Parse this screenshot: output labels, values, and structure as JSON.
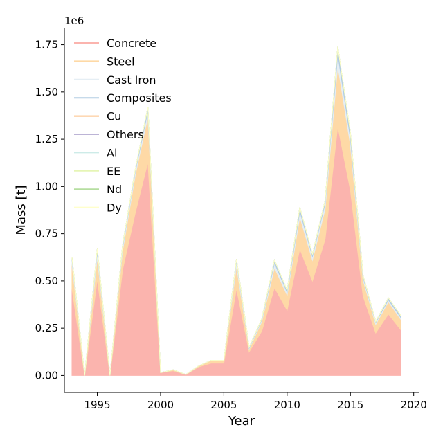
{
  "chart_data": {
    "type": "area",
    "stacked": true,
    "title": "",
    "xlabel": "Year",
    "ylabel": "Mass [t]",
    "y_offset_label": "1e6",
    "xlim": [
      1992.4,
      2020.4
    ],
    "ylim": [
      -0.09,
      1.84
    ],
    "xticks": [
      1995,
      2000,
      2005,
      2010,
      2015,
      2020
    ],
    "yticks": [
      0.0,
      0.25,
      0.5,
      0.75,
      1.0,
      1.25,
      1.5,
      1.75
    ],
    "ytick_labels": [
      "0.00",
      "0.25",
      "0.50",
      "0.75",
      "1.00",
      "1.25",
      "1.50",
      "1.75"
    ],
    "legend_position": "top-left",
    "grid": false,
    "x": [
      1993,
      1994,
      1995,
      1996,
      1997,
      1998,
      1999,
      2000,
      2001,
      2002,
      2003,
      2004,
      2005,
      2006,
      2007,
      2008,
      2009,
      2010,
      2011,
      2012,
      2013,
      2014,
      2015,
      2016,
      2017,
      2018,
      2019
    ],
    "series": [
      {
        "name": "Concrete",
        "color": "#fbb4ae",
        "values": [
          0.46,
          0.0,
          0.51,
          0.0,
          0.56,
          0.86,
          1.13,
          0.015,
          0.025,
          0.005,
          0.045,
          0.065,
          0.065,
          0.46,
          0.125,
          0.235,
          0.465,
          0.345,
          0.67,
          0.5,
          0.72,
          1.32,
          0.98,
          0.42,
          0.225,
          0.325,
          0.24
        ]
      },
      {
        "name": "Steel",
        "color": "#fed9a6",
        "values": [
          0.13,
          0.0,
          0.115,
          0.0,
          0.1,
          0.2,
          0.24,
          0.0,
          0.005,
          0.0,
          0.005,
          0.015,
          0.015,
          0.12,
          0.015,
          0.05,
          0.105,
          0.08,
          0.17,
          0.11,
          0.16,
          0.32,
          0.24,
          0.085,
          0.045,
          0.065,
          0.055
        ]
      },
      {
        "name": "Cast Iron",
        "color": "#e5eef4",
        "values": [
          0.025,
          0.0,
          0.03,
          0.0,
          0.02,
          0.02,
          0.03,
          0.0,
          0.0,
          0.0,
          0.0,
          0.0,
          0.0,
          0.025,
          0.005,
          0.01,
          0.025,
          0.015,
          0.03,
          0.02,
          0.03,
          0.06,
          0.035,
          0.015,
          0.01,
          0.01,
          0.01
        ]
      },
      {
        "name": "Composites",
        "color": "#b3cde3",
        "values": [
          0.01,
          0.0,
          0.015,
          0.0,
          0.01,
          0.01,
          0.02,
          0.0,
          0.0,
          0.0,
          0.0,
          0.0,
          0.0,
          0.01,
          0.005,
          0.005,
          0.015,
          0.01,
          0.02,
          0.01,
          0.015,
          0.04,
          0.03,
          0.01,
          0.005,
          0.01,
          0.01
        ]
      },
      {
        "name": "Cu",
        "color": "#fdc086",
        "values": [
          0.0,
          0.0,
          0.0,
          0.0,
          0.0,
          0.0,
          0.0,
          0.0,
          0.0,
          0.0,
          0.0,
          0.0,
          0.0,
          0.0,
          0.0,
          0.0,
          0.0,
          0.0,
          0.0,
          0.0,
          0.0,
          0.0,
          0.0,
          0.0,
          0.0,
          0.0,
          0.0
        ]
      },
      {
        "name": "Others",
        "color": "#bcb4d6",
        "values": [
          0.0,
          0.0,
          0.0,
          0.0,
          0.0,
          0.0,
          0.0,
          0.0,
          0.0,
          0.0,
          0.0,
          0.0,
          0.0,
          0.0,
          0.0,
          0.0,
          0.0,
          0.0,
          0.0,
          0.0,
          0.0,
          0.0,
          0.0,
          0.0,
          0.0,
          0.0,
          0.0
        ]
      },
      {
        "name": "Al",
        "color": "#cdebe8",
        "values": [
          0.0,
          0.0,
          0.0,
          0.0,
          0.0,
          0.0,
          0.0,
          0.0,
          0.0,
          0.0,
          0.0,
          0.0,
          0.0,
          0.0,
          0.0,
          0.0,
          0.0,
          0.0,
          0.0,
          0.0,
          0.0,
          0.0,
          0.0,
          0.0,
          0.0,
          0.0,
          0.0
        ]
      },
      {
        "name": "EE",
        "color": "#e6f5b6",
        "values": [
          0.0,
          0.0,
          0.0,
          0.0,
          0.0,
          0.0,
          0.0,
          0.0,
          0.0,
          0.0,
          0.0,
          0.0,
          0.0,
          0.0,
          0.0,
          0.0,
          0.0,
          0.0,
          0.0,
          0.0,
          0.0,
          0.0,
          0.0,
          0.0,
          0.0,
          0.0,
          0.0
        ]
      },
      {
        "name": "Nd",
        "color": "#b5dea0",
        "values": [
          0.0,
          0.0,
          0.0,
          0.0,
          0.0,
          0.0,
          0.0,
          0.0,
          0.0,
          0.0,
          0.0,
          0.0,
          0.0,
          0.0,
          0.0,
          0.0,
          0.0,
          0.0,
          0.0,
          0.0,
          0.0,
          0.0,
          0.0,
          0.0,
          0.0,
          0.0,
          0.0
        ]
      },
      {
        "name": "Dy",
        "color": "#ffffcc",
        "values": [
          0.0,
          0.0,
          0.0,
          0.0,
          0.0,
          0.0,
          0.0,
          0.0,
          0.0,
          0.0,
          0.0,
          0.0,
          0.0,
          0.0,
          0.0,
          0.0,
          0.0,
          0.0,
          0.0,
          0.0,
          0.0,
          0.0,
          0.0,
          0.0,
          0.0,
          0.0,
          0.0
        ]
      }
    ]
  }
}
